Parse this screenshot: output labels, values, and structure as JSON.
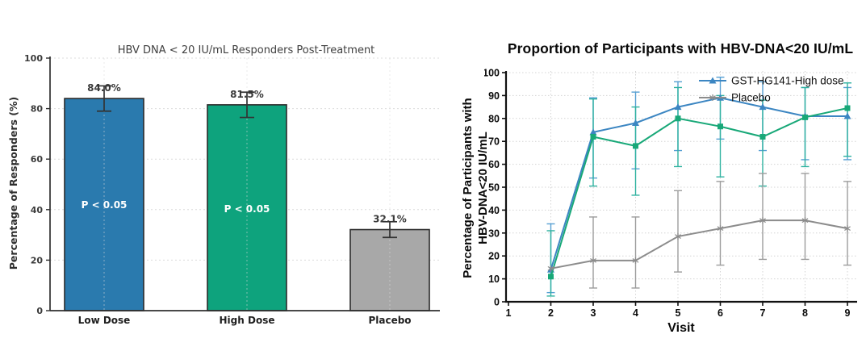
{
  "chart_data": [
    {
      "id": "responders-bar-chart",
      "type": "bar",
      "title": "HBV DNA < 20 IU/mL Responders Post-Treatment",
      "ylabel": "Percentage of Responders (%)",
      "categories": [
        "Low Dose",
        "High Dose",
        "Placebo"
      ],
      "values": [
        84.0,
        81.5,
        32.1
      ],
      "value_labels": [
        "84.0%",
        "81.5%",
        "32.1%"
      ],
      "error_low": [
        79.0,
        76.5,
        29.0
      ],
      "error_high": [
        89.0,
        86.5,
        35.2
      ],
      "annotations": [
        {
          "bar": 0,
          "text": "P < 0.05"
        },
        {
          "bar": 1,
          "text": "P < 0.05"
        }
      ],
      "ylim": [
        0,
        100
      ],
      "yticks": [
        0,
        20,
        40,
        60,
        80,
        100
      ],
      "grid": true,
      "colors": {
        "bars": [
          "#2a7aae",
          "#0ea37d",
          "#a8a8a8"
        ],
        "bar_edge": "#2b2b2b",
        "error": "#333333",
        "grid": "#dcdcdc",
        "spine": "#2f2f2f",
        "tick_label": "#3a3a3a",
        "annotation_text": "#ffffff"
      }
    },
    {
      "id": "proportion-line-chart",
      "type": "line",
      "title": "Proportion of Participants with HBV-DNA<20 IU/mL",
      "xlabel": "Visit",
      "ylabel_line1": "Percentage of Participants with",
      "ylabel_line2": "HBV-DNA<20 IU/mL",
      "xlim": [
        1,
        9
      ],
      "xticks": [
        1,
        2,
        3,
        4,
        5,
        6,
        7,
        8,
        9
      ],
      "ylim": [
        0,
        100
      ],
      "yticks": [
        0,
        10,
        20,
        30,
        40,
        50,
        60,
        70,
        80,
        90,
        100
      ],
      "grid": true,
      "legend_position": "upper right",
      "legend": [
        {
          "label": "GST-HG141-High dose",
          "color": "#3c86c2",
          "marker": "triangle"
        },
        {
          "label": "Placebo",
          "color": "#8c8c8c",
          "marker": "star"
        }
      ],
      "series": [
        {
          "name": "GST-HG141-High dose",
          "color": "#3c86c2",
          "err_color": "#57a0d3",
          "marker": "triangle",
          "x": [
            2,
            3,
            4,
            5,
            6,
            7,
            8,
            9
          ],
          "y": [
            14,
            74,
            78,
            85,
            89,
            85,
            81,
            81
          ],
          "err_low": [
            4,
            54,
            58,
            66,
            71,
            66,
            62,
            62
          ],
          "err_high": [
            34,
            89,
            91.5,
            96,
            98,
            96,
            93.5,
            93.5
          ]
        },
        {
          "name": "",
          "color": "#18a878",
          "err_color": "#2fb2a0",
          "marker": "square",
          "x": [
            2,
            3,
            4,
            5,
            6,
            7,
            8,
            9
          ],
          "y": [
            11,
            72,
            68,
            80,
            76.5,
            72,
            80.5,
            84.5
          ],
          "err_low": [
            2.5,
            50.5,
            46.5,
            59,
            54.5,
            50.5,
            59,
            63.5
          ],
          "err_high": [
            31,
            88.5,
            85,
            93.5,
            90,
            88,
            93.5,
            95.5
          ]
        },
        {
          "name": "Placebo",
          "color": "#8c8c8c",
          "err_color": "#9c9c9c",
          "marker": "star",
          "x": [
            2,
            3,
            4,
            5,
            6,
            7,
            8,
            9
          ],
          "y": [
            14.5,
            18,
            18,
            28.5,
            32,
            35.5,
            35.5,
            32
          ],
          "err_low": [
            null,
            6,
            6,
            13,
            16,
            18.5,
            18.5,
            16
          ],
          "err_high": [
            null,
            37,
            37,
            48.5,
            52.5,
            56,
            56,
            52.5
          ]
        }
      ],
      "colors": {
        "grid": "#d4d4d4",
        "axis": "#111111",
        "tick_label": "#0a0a0a"
      }
    }
  ]
}
